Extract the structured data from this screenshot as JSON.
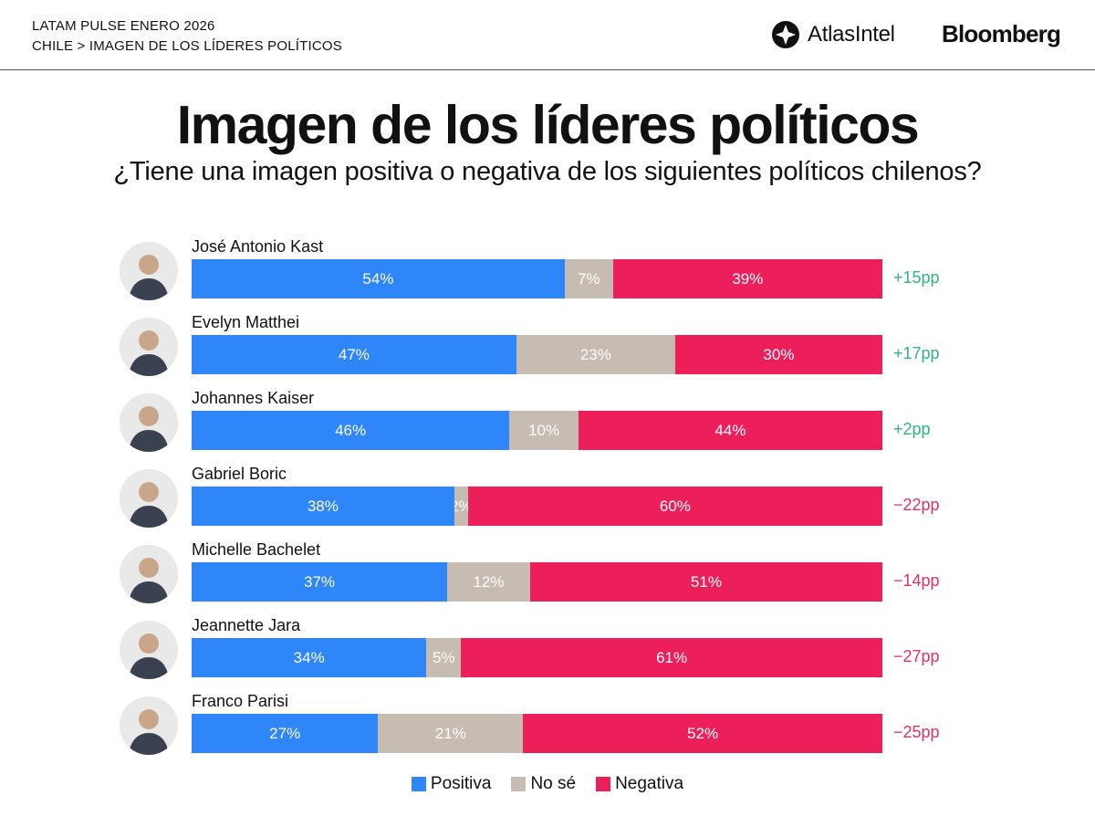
{
  "header": {
    "line1": "LATAM PULSE ENERO 2026",
    "line2": "CHILE > IMAGEN DE LOS LÍDERES POLÍTICOS",
    "logo_atlas": "AtlasIntel",
    "logo_bloomberg": "Bloomberg"
  },
  "colors": {
    "positiva": "#2e86f9",
    "nose": "#c7bcb2",
    "negativa": "#ec1f5a",
    "net_positive": "#2fb389",
    "net_negative": "#d8336a"
  },
  "chart_data": {
    "type": "bar",
    "orientation": "horizontal",
    "stacked": true,
    "title": "Imagen de los líderes políticos",
    "subtitle": "¿Tiene una imagen positiva o negativa de los siguientes políticos chilenos?",
    "categories": [
      "José Antonio Kast",
      "Evelyn Matthei",
      "Johannes Kaiser",
      "Gabriel Boric",
      "Michelle Bachelet",
      "Jeannette Jara",
      "Franco Parisi"
    ],
    "series": [
      {
        "name": "Positiva",
        "values": [
          54,
          47,
          46,
          38,
          37,
          34,
          27
        ],
        "labels": [
          "54%",
          "47%",
          "46%",
          "38%",
          "37%",
          "34%",
          "27%"
        ]
      },
      {
        "name": "No sé",
        "values": [
          7,
          23,
          10,
          2,
          12,
          5,
          21
        ],
        "labels": [
          "7%",
          "23%",
          "10%",
          "2%",
          "12%",
          "5%",
          "21%"
        ]
      },
      {
        "name": "Negativa",
        "values": [
          39,
          30,
          44,
          60,
          51,
          61,
          52
        ],
        "labels": [
          "39%",
          "30%",
          "44%",
          "60%",
          "51%",
          "61%",
          "52%"
        ]
      }
    ],
    "net": [
      15,
      17,
      2,
      -22,
      -14,
      -27,
      -25
    ],
    "net_labels": [
      "+15pp",
      "+17pp",
      "+2pp",
      "−22pp",
      "−14pp",
      "−27pp",
      "−25pp"
    ],
    "xlim": [
      0,
      100
    ],
    "legend_position": "bottom-center",
    "grid": false
  }
}
